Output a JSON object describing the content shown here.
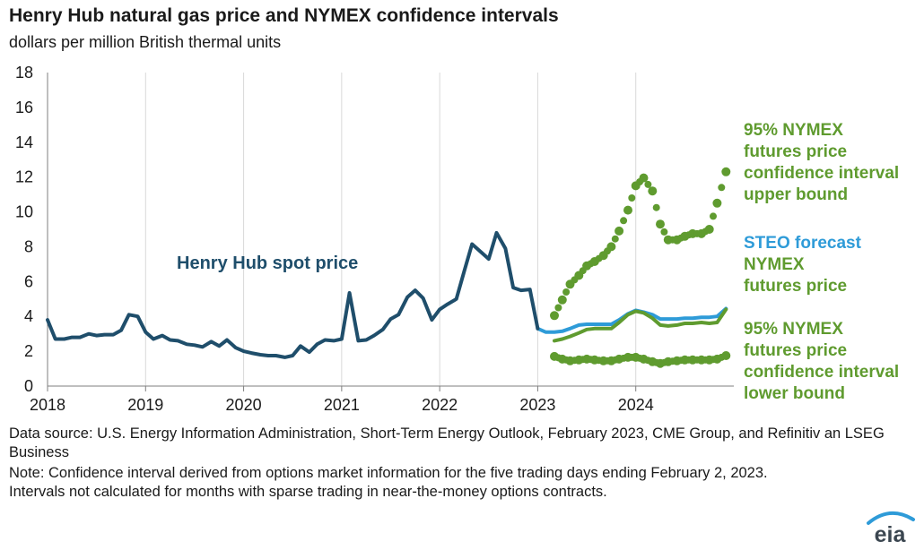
{
  "chart_data": {
    "type": "line",
    "title": "Henry Hub natural gas price and NYMEX confidence intervals",
    "subtitle": "dollars per million British thermal units",
    "ylim": [
      0,
      18
    ],
    "yticks": [
      0,
      2,
      4,
      6,
      8,
      10,
      12,
      14,
      16,
      18
    ],
    "xlim": [
      2018,
      2025
    ],
    "xticks": [
      "2018",
      "2019",
      "2020",
      "2021",
      "2022",
      "2023",
      "2024"
    ],
    "grid": "vertical lines at years",
    "series": [
      {
        "name": "Henry Hub spot price",
        "style": "solid",
        "color": "#1f4e6b",
        "points": [
          [
            2018.0,
            3.8
          ],
          [
            2018.08,
            2.7
          ],
          [
            2018.17,
            2.7
          ],
          [
            2018.25,
            2.8
          ],
          [
            2018.33,
            2.8
          ],
          [
            2018.42,
            3.0
          ],
          [
            2018.5,
            2.9
          ],
          [
            2018.58,
            2.95
          ],
          [
            2018.67,
            2.95
          ],
          [
            2018.75,
            3.2
          ],
          [
            2018.83,
            4.1
          ],
          [
            2018.92,
            4.0
          ],
          [
            2019.0,
            3.1
          ],
          [
            2019.08,
            2.7
          ],
          [
            2019.17,
            2.9
          ],
          [
            2019.25,
            2.65
          ],
          [
            2019.33,
            2.6
          ],
          [
            2019.42,
            2.4
          ],
          [
            2019.5,
            2.35
          ],
          [
            2019.58,
            2.25
          ],
          [
            2019.67,
            2.55
          ],
          [
            2019.75,
            2.3
          ],
          [
            2019.83,
            2.65
          ],
          [
            2019.92,
            2.2
          ],
          [
            2020.0,
            2.0
          ],
          [
            2020.08,
            1.9
          ],
          [
            2020.17,
            1.8
          ],
          [
            2020.25,
            1.75
          ],
          [
            2020.33,
            1.75
          ],
          [
            2020.42,
            1.65
          ],
          [
            2020.5,
            1.75
          ],
          [
            2020.58,
            2.3
          ],
          [
            2020.67,
            1.95
          ],
          [
            2020.75,
            2.4
          ],
          [
            2020.83,
            2.65
          ],
          [
            2020.92,
            2.6
          ],
          [
            2021.0,
            2.7
          ],
          [
            2021.08,
            5.35
          ],
          [
            2021.17,
            2.6
          ],
          [
            2021.25,
            2.65
          ],
          [
            2021.33,
            2.9
          ],
          [
            2021.42,
            3.25
          ],
          [
            2021.5,
            3.85
          ],
          [
            2021.58,
            4.1
          ],
          [
            2021.67,
            5.1
          ],
          [
            2021.75,
            5.5
          ],
          [
            2021.83,
            5.05
          ],
          [
            2021.92,
            3.8
          ],
          [
            2022.0,
            4.4
          ],
          [
            2022.08,
            4.7
          ],
          [
            2022.17,
            5.0
          ],
          [
            2022.25,
            6.6
          ],
          [
            2022.33,
            8.15
          ],
          [
            2022.42,
            7.7
          ],
          [
            2022.5,
            7.3
          ],
          [
            2022.58,
            8.8
          ],
          [
            2022.67,
            7.9
          ],
          [
            2022.75,
            5.65
          ],
          [
            2022.83,
            5.5
          ],
          [
            2022.92,
            5.55
          ],
          [
            2023.0,
            3.3
          ]
        ]
      },
      {
        "name": "STEO forecast",
        "style": "solid",
        "color": "#2e9bd8",
        "points": [
          [
            2023.0,
            3.3
          ],
          [
            2023.08,
            3.1
          ],
          [
            2023.17,
            3.1
          ],
          [
            2023.25,
            3.15
          ],
          [
            2023.33,
            3.3
          ],
          [
            2023.42,
            3.5
          ],
          [
            2023.5,
            3.55
          ],
          [
            2023.58,
            3.55
          ],
          [
            2023.67,
            3.55
          ],
          [
            2023.75,
            3.55
          ],
          [
            2023.83,
            3.8
          ],
          [
            2023.92,
            4.15
          ],
          [
            2024.0,
            4.35
          ],
          [
            2024.08,
            4.25
          ],
          [
            2024.17,
            4.1
          ],
          [
            2024.25,
            3.85
          ],
          [
            2024.33,
            3.85
          ],
          [
            2024.42,
            3.85
          ],
          [
            2024.5,
            3.9
          ],
          [
            2024.58,
            3.9
          ],
          [
            2024.67,
            3.95
          ],
          [
            2024.75,
            3.95
          ],
          [
            2024.83,
            4.0
          ],
          [
            2024.92,
            4.45
          ]
        ]
      },
      {
        "name": "NYMEX futures price",
        "style": "solid",
        "color": "#5f9b2f",
        "points": [
          [
            2023.17,
            2.6
          ],
          [
            2023.25,
            2.7
          ],
          [
            2023.33,
            2.85
          ],
          [
            2023.42,
            3.05
          ],
          [
            2023.5,
            3.25
          ],
          [
            2023.58,
            3.3
          ],
          [
            2023.67,
            3.3
          ],
          [
            2023.75,
            3.3
          ],
          [
            2023.83,
            3.65
          ],
          [
            2023.92,
            4.1
          ],
          [
            2024.0,
            4.3
          ],
          [
            2024.08,
            4.2
          ],
          [
            2024.17,
            3.9
          ],
          [
            2024.25,
            3.5
          ],
          [
            2024.33,
            3.45
          ],
          [
            2024.42,
            3.5
          ],
          [
            2024.5,
            3.6
          ],
          [
            2024.58,
            3.6
          ],
          [
            2024.67,
            3.65
          ],
          [
            2024.75,
            3.6
          ],
          [
            2024.83,
            3.65
          ],
          [
            2024.92,
            4.4
          ]
        ]
      },
      {
        "name": "95% NYMEX futures price confidence interval upper bound",
        "style": "dotted",
        "color": "#5f9b2f",
        "points": [
          [
            2023.17,
            4.05
          ],
          [
            2023.25,
            4.95
          ],
          [
            2023.33,
            5.85
          ],
          [
            2023.42,
            6.35
          ],
          [
            2023.5,
            6.9
          ],
          [
            2023.58,
            7.15
          ],
          [
            2023.67,
            7.5
          ],
          [
            2023.75,
            8.0
          ],
          [
            2023.83,
            8.9
          ],
          [
            2023.92,
            10.1
          ],
          [
            2024.0,
            11.5
          ],
          [
            2024.08,
            11.95
          ],
          [
            2024.17,
            11.2
          ],
          [
            2024.25,
            9.3
          ],
          [
            2024.33,
            8.4
          ],
          [
            2024.42,
            8.4
          ],
          [
            2024.5,
            8.6
          ],
          [
            2024.58,
            8.75
          ],
          [
            2024.67,
            8.75
          ],
          [
            2024.75,
            9.0
          ],
          [
            2024.83,
            10.5
          ],
          [
            2024.92,
            12.3
          ]
        ]
      },
      {
        "name": "95% NYMEX futures price confidence interval lower bound",
        "style": "dotted",
        "color": "#5f9b2f",
        "points": [
          [
            2023.17,
            1.7
          ],
          [
            2023.25,
            1.55
          ],
          [
            2023.33,
            1.45
          ],
          [
            2023.42,
            1.5
          ],
          [
            2023.5,
            1.55
          ],
          [
            2023.58,
            1.5
          ],
          [
            2023.67,
            1.45
          ],
          [
            2023.75,
            1.45
          ],
          [
            2023.83,
            1.55
          ],
          [
            2023.92,
            1.65
          ],
          [
            2024.0,
            1.65
          ],
          [
            2024.08,
            1.55
          ],
          [
            2024.17,
            1.4
          ],
          [
            2024.25,
            1.3
          ],
          [
            2024.33,
            1.4
          ],
          [
            2024.42,
            1.45
          ],
          [
            2024.5,
            1.5
          ],
          [
            2024.58,
            1.5
          ],
          [
            2024.67,
            1.5
          ],
          [
            2024.75,
            1.5
          ],
          [
            2024.83,
            1.55
          ],
          [
            2024.92,
            1.75
          ]
        ]
      }
    ],
    "annotations": {
      "spot": "Henry Hub spot price",
      "upper": [
        "95% NYMEX",
        "futures price",
        "confidence interval",
        "upper bound"
      ],
      "steo_prefix": "STEO",
      "steo_suffix": "forecast",
      "nymex": [
        "NYMEX",
        "futures price"
      ],
      "lower": [
        "95% NYMEX",
        "futures price",
        "confidence interval",
        "lower bound"
      ]
    }
  },
  "footer": {
    "source": "Data source: U.S. Energy Information Administration, Short-Term Energy Outlook, February 2023, CME Group, and Refinitiv an LSEG Business",
    "note": "Note: Confidence interval derived from options market information for the five trading days ending February 2, 2023. Intervals not calculated for months with sparse trading in near-the-money options contracts.",
    "logo_text": "eia"
  },
  "colors": {
    "spot": "#1f4e6b",
    "steo": "#2e9bd8",
    "nymex": "#5f9b2f",
    "grid": "#d9d9d9",
    "axis": "#7f7f7f"
  }
}
